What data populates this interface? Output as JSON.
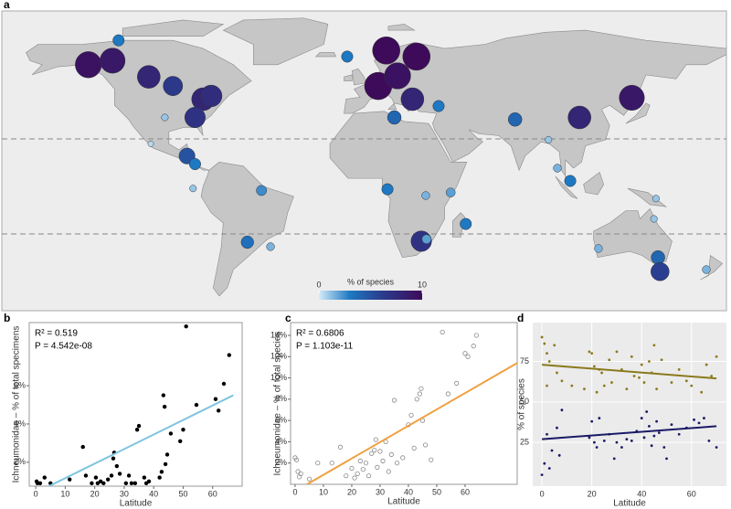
{
  "chart_data": [
    {
      "type": "bubble_map",
      "panel": "a",
      "legend_title": "% of species",
      "colorbar_lim": [
        0,
        10
      ],
      "colorbar_ticks": [
        0,
        10
      ],
      "lon": [
        -137,
        -125,
        -122,
        -107,
        -95,
        -80,
        -76,
        -84,
        -99,
        -106,
        -88,
        -84,
        -85,
        -51,
        -58,
        -46.5,
        11,
        26,
        -8.4,
        7,
        16.6,
        24,
        15,
        37,
        75,
        91.6,
        107,
        133,
        102.4,
        96,
        11.6,
        30.6,
        43,
        50.5,
        28.4,
        31,
        144,
        116.4,
        146,
        147,
        170,
        145
      ],
      "lat": [
        60,
        62,
        72,
        54,
        49.5,
        43,
        44.6,
        34,
        34,
        21,
        15,
        11,
        -1,
        -2,
        -27.5,
        -29.7,
        67,
        64,
        64,
        49.5,
        54.5,
        43,
        34,
        39.6,
        33,
        23,
        34,
        43.7,
        2.7,
        9,
        -1.4,
        -4.5,
        -3,
        -18.5,
        -27,
        -26,
        -16,
        -30.6,
        -35,
        -42,
        -41,
        -6
      ],
      "values": [
        9.5,
        9,
        3,
        8,
        6.5,
        8,
        7.5,
        7,
        1,
        0.5,
        5,
        3,
        1,
        2.5,
        3.5,
        1.5,
        10,
        10,
        3,
        10,
        9.5,
        8,
        4,
        3,
        4,
        1,
        8,
        9,
        3,
        1.5,
        3,
        1.5,
        2,
        3,
        7,
        2,
        1,
        1.5,
        4,
        6,
        1.5,
        1
      ]
    },
    {
      "type": "scatter",
      "panel": "b",
      "style": "classic",
      "x_label": "Latitude",
      "y_label": "Ichneumonidae – % of total specimens",
      "annotations": [
        "R² = 0.519",
        "P = 4.542e-08"
      ],
      "xlim": [
        -2.2,
        70
      ],
      "ylim": [
        0.75,
        9.3
      ],
      "xticks": [
        0,
        10,
        20,
        30,
        40,
        50,
        60
      ],
      "yticks": [
        {
          "value": 2,
          "label": "2%"
        },
        {
          "value": 4,
          "label": "4%"
        },
        {
          "value": 6,
          "label": "6%"
        }
      ],
      "series": [
        {
          "marker": "filled",
          "color": "#000000",
          "x": [
            0.3,
            0.6,
            1.5,
            3,
            5,
            11.5,
            16,
            17,
            19,
            20.4,
            21,
            22,
            23,
            24.5,
            25.7,
            26.3,
            26.6,
            27.5,
            28.5,
            30.6,
            31.6,
            32.5,
            33.7,
            34.4,
            35,
            36.8,
            37.5,
            38.4,
            42,
            42.7,
            43.3,
            43.7,
            44,
            44.6,
            45.8,
            49,
            50,
            51,
            54.5,
            61,
            62,
            63.8,
            65.6
          ],
          "values": [
            1.0,
            0.9,
            0.9,
            1.2,
            0.9,
            1.1,
            2.8,
            1.3,
            0.9,
            1.2,
            0.9,
            1.0,
            0.9,
            1.1,
            1.3,
            2.2,
            2.5,
            1.8,
            1.4,
            0.9,
            1.3,
            0.9,
            0.9,
            3.7,
            3.9,
            1.2,
            0.9,
            1.0,
            1.2,
            1.5,
            5.5,
            4.9,
            1.9,
            2.4,
            3.5,
            3.1,
            3.7,
            9.1,
            5.0,
            5.3,
            4.7,
            6.1,
            7.6
          ],
          "fit": {
            "x": [
              4.5,
              67
            ],
            "values": [
              0.75,
              5.5
            ],
            "color": "#7ec4e0"
          }
        }
      ]
    },
    {
      "type": "scatter",
      "panel": "c",
      "style": "classic",
      "x_label": "Latitude",
      "y_label": "Ichneumonidae – % of total species",
      "annotations": [
        "R² = 0.6806",
        "P = 1.103e-11"
      ],
      "xlim": [
        -1.6,
        78.4
      ],
      "ylim": [
        0,
        15.2
      ],
      "xticks": [
        0,
        10,
        20,
        30,
        40,
        50,
        60
      ],
      "yticks": [
        {
          "value": 2,
          "label": "2%"
        },
        {
          "value": 4,
          "label": "4%"
        },
        {
          "value": 6,
          "label": "6%"
        },
        {
          "value": 8,
          "label": "8%"
        },
        {
          "value": 10,
          "label": "10%"
        },
        {
          "value": 12,
          "label": "12%"
        },
        {
          "value": 14,
          "label": "14%"
        }
      ],
      "series": [
        {
          "marker": "open",
          "color": "#888888",
          "x": [
            0,
            0.5,
            1,
            1.5,
            2,
            5,
            8,
            13,
            16,
            18,
            20,
            21,
            22,
            23,
            24,
            25,
            26,
            27,
            28,
            28.5,
            29,
            30,
            31,
            32,
            33,
            34,
            35,
            36,
            38,
            40,
            41,
            42,
            43,
            44,
            44.5,
            45,
            46,
            48,
            52,
            54,
            57,
            60,
            61,
            63,
            64
          ],
          "values": [
            2.5,
            2.3,
            1.2,
            0.7,
            1.0,
            0.5,
            2.0,
            2.0,
            3.5,
            0.8,
            1.5,
            0.6,
            1.0,
            2.2,
            1.4,
            2.0,
            0.8,
            2.9,
            3.2,
            4.2,
            1.6,
            3.1,
            2.2,
            4.0,
            1.2,
            2.8,
            7.9,
            2.0,
            2.5,
            5.6,
            6.5,
            3.4,
            8.0,
            8.5,
            9.0,
            6.0,
            3.7,
            2.3,
            14.3,
            8.5,
            9.5,
            12.3,
            12.0,
            13.0,
            14.0
          ],
          "fit": {
            "x": [
              4.2,
              78.4
            ],
            "values": [
              0,
              11.4
            ],
            "color": "#f0a040"
          }
        }
      ]
    },
    {
      "type": "scatter",
      "panel": "d",
      "style": "ggplot",
      "grid": true,
      "x_label": "Latitude",
      "y_label": "% of species",
      "annotations": [],
      "xlim": [
        -3.7,
        74
      ],
      "ylim": [
        -2,
        99
      ],
      "xticks": [
        0,
        20,
        40,
        60
      ],
      "yticks": [
        25,
        50,
        75
      ],
      "series": [
        {
          "marker": "filled",
          "color": "#8a7a1c",
          "x": [
            0,
            1,
            2,
            2,
            3,
            5,
            6,
            8,
            12,
            17,
            19,
            20,
            21,
            22,
            23,
            24,
            25,
            27,
            28,
            30,
            32,
            34,
            36,
            37,
            39,
            40,
            41,
            43,
            44,
            45,
            46,
            48,
            52,
            55,
            58,
            60,
            64,
            66,
            68,
            70
          ],
          "values": [
            90,
            86,
            80,
            60,
            75,
            85,
            68,
            63,
            60,
            58,
            81,
            80,
            72,
            56,
            70,
            68,
            60,
            76,
            62,
            81,
            70,
            58,
            78,
            66,
            65,
            73,
            62,
            75,
            68,
            85,
            58,
            76,
            62,
            70,
            63,
            60,
            56,
            73,
            66,
            78
          ],
          "fit": {
            "x": [
              0,
              70
            ],
            "values": [
              73,
              64.5
            ],
            "color": "#8a7a1c"
          }
        },
        {
          "marker": "filled",
          "color": "#1a1a66",
          "x": [
            0,
            1,
            2,
            3,
            4,
            6,
            7,
            8,
            19,
            20,
            21,
            22,
            23,
            25,
            27,
            29,
            30,
            32,
            34,
            36,
            38,
            40,
            41,
            42,
            43,
            44,
            45,
            46,
            47,
            49,
            50,
            52,
            55,
            58,
            61,
            63,
            65,
            67,
            70
          ],
          "values": [
            5,
            12,
            30,
            9,
            20,
            34,
            17,
            45,
            28,
            38,
            25,
            22,
            40,
            26,
            30,
            15,
            25,
            22,
            27,
            26,
            32,
            40,
            28,
            44,
            35,
            23,
            29,
            38,
            31,
            22,
            15,
            36,
            30,
            34,
            39,
            37,
            40,
            26,
            22
          ],
          "fit": {
            "x": [
              0,
              70
            ],
            "values": [
              27,
              35
            ],
            "color": "#1a1a66"
          }
        }
      ]
    }
  ]
}
